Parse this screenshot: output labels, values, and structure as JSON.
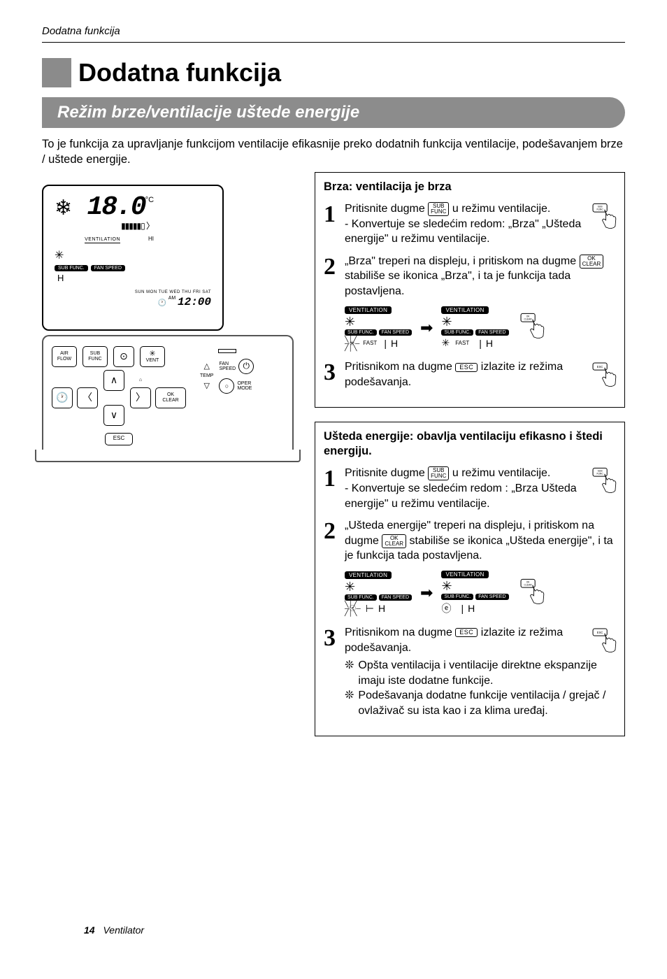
{
  "header": "Dodatna funkcija",
  "title": "Dodatna funkcija",
  "subtitle": "Režim brze/ventilacije uštede energije",
  "intro": "To je funkcija za upravljanje funkcijom ventilacije efikasnije preko dodatnih funkcija ventilacije, podešavanjem brze / uštede energije.",
  "buttons": {
    "sub_func": "SUB\nFUNC",
    "ok_clear": "OK\nCLEAR",
    "esc": "ESC"
  },
  "box1": {
    "title": "Brza: ventilacija je brza",
    "step1_a": "Pritisnite dugme ",
    "step1_b": " u režimu ventilacije.",
    "step1_c": "- Konvertuje se sledećim redom: „Brza\" „Ušteda energije\" u režimu ventilacije.",
    "step2_a": "„Brza\" treperi na displeju, i pritiskom na dugme ",
    "step2_b": " stabiliše se ikonica „Brza\", i ta je funkcija tada postavljena.",
    "step3_a": "Pritisnikom na dugme ",
    "step3_b": " izlazite iz režima podešavanja."
  },
  "box2": {
    "title": "Ušteda energije: obavlja ventilaciju efikasno i štedi energiju.",
    "step1_a": "Pritisnite dugme ",
    "step1_b": " u režimu ventilacije.",
    "step1_c": "- Konvertuje se sledećim redom : „Brza  Ušteda energije\" u režimu ventilacije.",
    "step2_a": "„Ušteda energije\" treperi na displeju, i pritiskom na dugme ",
    "step2_b": " stabiliše se ikonica „Ušteda energije\", i ta je funkcija tada postavljena.",
    "step3_a": "Pritisnikom na dugme ",
    "step3_b": " izlazite iz režima podešavanja.",
    "note1": "Opšta ventilacija i ventilacije direktne ekspanzije imaju iste dodatne funkcije.",
    "note2": "Podešavanja dodatne funkcije ventilacija / grejač / ovlaživač su ista kao i za klima uređaj."
  },
  "display": {
    "ventilation": "VENTILATION",
    "sub_func": "SUB FUNC.",
    "fan_speed": "FAN SPEED",
    "H": "H",
    "fast": "FAST",
    "temp": "18.0",
    "time": "12:00",
    "am": "AM",
    "days": "SUN MON TUE WED THU FRI SAT"
  },
  "remote": {
    "air_flow": "AIR\nFLOW",
    "sub_func": "SUB\nFUNC",
    "vent": "VENT",
    "fan_speed": "FAN\nSPEED",
    "temp": "TEMP",
    "oper_mode": "OPER\nMODE",
    "ok_clear": "OK\nCLEAR",
    "esc": "ESC"
  },
  "footer": {
    "page": "14",
    "label": "Ventilator"
  }
}
